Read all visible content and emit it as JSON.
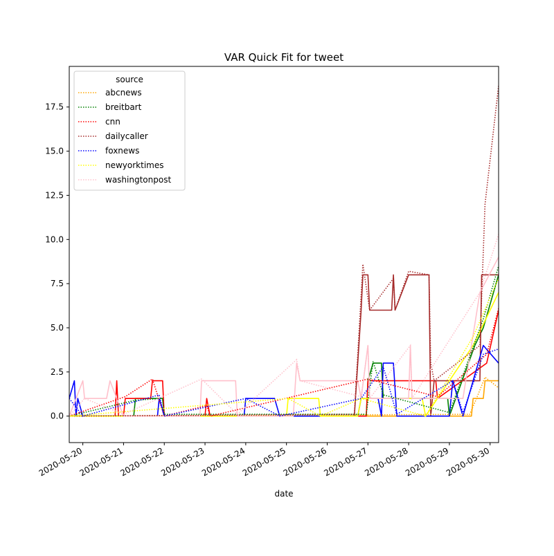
{
  "chart_data": {
    "type": "line",
    "title": "VAR Quick Fit for tweet",
    "xlabel": "date",
    "ylabel": "",
    "x_range": [
      "2020-05-19 16:00",
      "2020-05-30 05:00"
    ],
    "ylim": [
      -1.5,
      19.8
    ],
    "x_ticks": [
      "2020-05-20",
      "2020-05-21",
      "2020-05-22",
      "2020-05-23",
      "2020-05-24",
      "2020-05-25",
      "2020-05-26",
      "2020-05-27",
      "2020-05-28",
      "2020-05-29",
      "2020-05-30"
    ],
    "y_ticks": [
      0.0,
      2.5,
      5.0,
      7.5,
      10.0,
      12.5,
      15.0,
      17.5
    ],
    "y_tick_labels": [
      "0.0",
      "2.5",
      "5.0",
      "7.5",
      "10.0",
      "12.5",
      "15.0",
      "17.5"
    ],
    "grid": false,
    "legend": {
      "title": "source",
      "placement": "upper-left"
    },
    "series": [
      {
        "name": "abcnews",
        "color": "#ffa500",
        "actual": [
          [
            "2020-05-19 16:00",
            0
          ],
          [
            "2020-05-29 13:00",
            0
          ],
          [
            "2020-05-29 14:00",
            1
          ],
          [
            "2020-05-29 20:00",
            1
          ],
          [
            "2020-05-29 21:00",
            2
          ],
          [
            "2020-05-30 05:00",
            2
          ]
        ],
        "fitted": [
          [
            "2020-05-19 16:00",
            0
          ],
          [
            "2020-05-29 12:00",
            0.1
          ],
          [
            "2020-05-29 16:00",
            1
          ],
          [
            "2020-05-29 21:00",
            2.2
          ],
          [
            "2020-05-30 05:00",
            1.6
          ]
        ]
      },
      {
        "name": "breitbart",
        "color": "#008000",
        "actual": [
          [
            "2020-05-19 16:00",
            0
          ],
          [
            "2020-05-21 06:00",
            0
          ],
          [
            "2020-05-21 07:00",
            1
          ],
          [
            "2020-05-21 23:00",
            1
          ],
          [
            "2020-05-22 00:00",
            0
          ],
          [
            "2020-05-26 23:00",
            0
          ],
          [
            "2020-05-27 00:00",
            2
          ],
          [
            "2020-05-27 03:00",
            3
          ],
          [
            "2020-05-27 08:00",
            3
          ],
          [
            "2020-05-27 09:00",
            1
          ],
          [
            "2020-05-28 23:00",
            1
          ],
          [
            "2020-05-29 00:00",
            0
          ],
          [
            "2020-05-29 15:00",
            4
          ],
          [
            "2020-05-29 20:00",
            5
          ],
          [
            "2020-05-30 05:00",
            8
          ]
        ],
        "fitted": [
          [
            "2020-05-19 16:00",
            0
          ],
          [
            "2020-05-21 07:00",
            0.9
          ],
          [
            "2020-05-21 23:00",
            1
          ],
          [
            "2020-05-22 00:00",
            0.1
          ],
          [
            "2020-05-26 23:00",
            0.1
          ],
          [
            "2020-05-27 03:00",
            3.1
          ],
          [
            "2020-05-27 09:00",
            1.2
          ],
          [
            "2020-05-29 00:00",
            0.2
          ],
          [
            "2020-05-29 20:00",
            5.5
          ],
          [
            "2020-05-30 05:00",
            8.5
          ]
        ]
      },
      {
        "name": "cnn",
        "color": "#ff0000",
        "actual": [
          [
            "2020-05-19 16:00",
            0
          ],
          [
            "2020-05-20 19:00",
            0
          ],
          [
            "2020-05-20 20:00",
            2
          ],
          [
            "2020-05-20 21:00",
            0
          ],
          [
            "2020-05-21 00:00",
            0
          ],
          [
            "2020-05-21 01:00",
            1
          ],
          [
            "2020-05-21 16:00",
            1
          ],
          [
            "2020-05-21 17:00",
            2
          ],
          [
            "2020-05-21 23:00",
            2
          ],
          [
            "2020-05-22 00:00",
            0
          ],
          [
            "2020-05-23 00:00",
            0
          ],
          [
            "2020-05-23 01:00",
            1
          ],
          [
            "2020-05-23 03:00",
            0
          ],
          [
            "2020-05-26 23:00",
            0
          ],
          [
            "2020-05-27 00:00",
            2
          ],
          [
            "2020-05-28 16:00",
            2
          ],
          [
            "2020-05-28 17:00",
            1
          ],
          [
            "2020-05-29 22:00",
            3
          ],
          [
            "2020-05-30 05:00",
            6
          ]
        ],
        "fitted": [
          [
            "2020-05-19 16:00",
            0
          ],
          [
            "2020-05-21 01:00",
            1.1
          ],
          [
            "2020-05-21 17:00",
            2.1
          ],
          [
            "2020-05-22 00:00",
            0
          ],
          [
            "2020-05-23 01:00",
            0.6
          ],
          [
            "2020-05-23 03:00",
            0
          ],
          [
            "2020-05-27 00:00",
            2.1
          ],
          [
            "2020-05-28 17:00",
            1.1
          ],
          [
            "2020-05-29 22:00",
            3.5
          ],
          [
            "2020-05-30 05:00",
            6.1
          ]
        ]
      },
      {
        "name": "dailycaller",
        "color": "#a52a2a",
        "actual": [
          [
            "2020-05-19 16:00",
            0
          ],
          [
            "2020-05-26 16:00",
            0
          ],
          [
            "2020-05-26 20:00",
            6
          ],
          [
            "2020-05-26 21:00",
            8
          ],
          [
            "2020-05-27 00:00",
            8
          ],
          [
            "2020-05-27 01:00",
            6
          ],
          [
            "2020-05-27 14:00",
            6
          ],
          [
            "2020-05-27 15:00",
            8
          ],
          [
            "2020-05-27 16:00",
            6
          ],
          [
            "2020-05-28 00:00",
            8
          ],
          [
            "2020-05-28 12:00",
            8
          ],
          [
            "2020-05-28 13:00",
            0
          ],
          [
            "2020-05-28 15:00",
            2
          ],
          [
            "2020-05-29 18:00",
            2
          ],
          [
            "2020-05-29 19:00",
            8
          ],
          [
            "2020-05-30 05:00",
            8
          ]
        ],
        "fitted": [
          [
            "2020-05-19 16:00",
            0
          ],
          [
            "2020-05-26 16:00",
            0.1
          ],
          [
            "2020-05-26 21:00",
            8.6
          ],
          [
            "2020-05-27 01:00",
            6
          ],
          [
            "2020-05-27 15:00",
            7.8
          ],
          [
            "2020-05-27 16:00",
            6
          ],
          [
            "2020-05-28 00:00",
            8.2
          ],
          [
            "2020-05-28 12:00",
            8
          ],
          [
            "2020-05-28 13:00",
            3
          ],
          [
            "2020-05-28 15:00",
            2
          ],
          [
            "2020-05-29 18:00",
            4
          ],
          [
            "2020-05-29 21:00",
            12
          ],
          [
            "2020-05-30 05:00",
            18.7
          ]
        ]
      },
      {
        "name": "foxnews",
        "color": "#0000ff",
        "actual": [
          [
            "2020-05-19 16:00",
            1
          ],
          [
            "2020-05-19 19:00",
            2
          ],
          [
            "2020-05-19 20:00",
            0
          ],
          [
            "2020-05-19 21:00",
            1
          ],
          [
            "2020-05-20 00:00",
            0
          ],
          [
            "2020-05-21 20:00",
            0
          ],
          [
            "2020-05-21 21:00",
            1
          ],
          [
            "2020-05-22 00:00",
            0
          ],
          [
            "2020-05-23 23:00",
            0
          ],
          [
            "2020-05-24 00:00",
            1
          ],
          [
            "2020-05-24 17:00",
            1
          ],
          [
            "2020-05-24 20:00",
            0
          ],
          [
            "2020-05-26 18:00",
            0
          ],
          [
            "2020-05-26 20:00",
            1
          ],
          [
            "2020-05-27 06:00",
            1
          ],
          [
            "2020-05-27 08:00",
            0
          ],
          [
            "2020-05-27 09:00",
            3
          ],
          [
            "2020-05-27 15:00",
            3
          ],
          [
            "2020-05-27 17:00",
            0
          ],
          [
            "2020-05-29 00:00",
            0
          ],
          [
            "2020-05-29 02:00",
            2
          ],
          [
            "2020-05-29 08:00",
            0
          ],
          [
            "2020-05-29 14:00",
            2
          ],
          [
            "2020-05-29 20:00",
            4
          ],
          [
            "2020-05-30 05:00",
            3
          ]
        ],
        "fitted": [
          [
            "2020-05-19 16:00",
            1
          ],
          [
            "2020-05-20 00:00",
            0
          ],
          [
            "2020-05-21 21:00",
            1.2
          ],
          [
            "2020-05-22 00:00",
            0
          ],
          [
            "2020-05-24 00:00",
            1
          ],
          [
            "2020-05-24 20:00",
            0
          ],
          [
            "2020-05-26 20:00",
            1
          ],
          [
            "2020-05-27 09:00",
            2.8
          ],
          [
            "2020-05-27 17:00",
            0.1
          ],
          [
            "2020-05-29 02:00",
            2
          ],
          [
            "2020-05-29 08:00",
            0.2
          ],
          [
            "2020-05-29 20:00",
            3.5
          ],
          [
            "2020-05-30 05:00",
            3.8
          ]
        ]
      },
      {
        "name": "newyorktimes",
        "color": "#ffff00",
        "actual": [
          [
            "2020-05-19 16:00",
            0
          ],
          [
            "2020-05-25 00:00",
            0
          ],
          [
            "2020-05-25 01:00",
            1
          ],
          [
            "2020-05-25 19:00",
            1
          ],
          [
            "2020-05-25 20:00",
            0
          ],
          [
            "2020-05-26 18:00",
            0
          ],
          [
            "2020-05-26 20:00",
            1
          ],
          [
            "2020-05-28 08:00",
            1
          ],
          [
            "2020-05-28 10:00",
            0
          ],
          [
            "2020-05-29 14:00",
            4
          ],
          [
            "2020-05-30 05:00",
            7
          ]
        ],
        "fitted": [
          [
            "2020-05-19 16:00",
            0
          ],
          [
            "2020-05-25 01:00",
            1
          ],
          [
            "2020-05-25 20:00",
            0
          ],
          [
            "2020-05-26 20:00",
            1
          ],
          [
            "2020-05-28 10:00",
            0
          ],
          [
            "2020-05-29 14:00",
            4.5
          ],
          [
            "2020-05-30 05:00",
            7.8
          ]
        ]
      },
      {
        "name": "washingtonpost",
        "color": "#ffc0cb",
        "actual": [
          [
            "2020-05-19 16:00",
            0
          ],
          [
            "2020-05-20 00:00",
            2
          ],
          [
            "2020-05-20 01:00",
            1
          ],
          [
            "2020-05-20 14:00",
            1
          ],
          [
            "2020-05-20 16:00",
            2
          ],
          [
            "2020-05-20 20:00",
            1
          ],
          [
            "2020-05-21 00:00",
            0
          ],
          [
            "2020-05-22 21:00",
            0
          ],
          [
            "2020-05-22 22:00",
            2
          ],
          [
            "2020-05-23 18:00",
            2
          ],
          [
            "2020-05-23 19:00",
            0
          ],
          [
            "2020-05-25 04:00",
            0
          ],
          [
            "2020-05-25 06:00",
            3
          ],
          [
            "2020-05-25 08:00",
            2
          ],
          [
            "2020-05-26 18:00",
            2
          ],
          [
            "2020-05-26 20:00",
            1
          ],
          [
            "2020-05-27 00:00",
            4
          ],
          [
            "2020-05-27 01:00",
            1
          ],
          [
            "2020-05-28 00:00",
            1
          ],
          [
            "2020-05-28 01:00",
            4
          ],
          [
            "2020-05-28 02:00",
            1
          ],
          [
            "2020-05-29 08:00",
            1
          ],
          [
            "2020-05-29 18:00",
            7
          ],
          [
            "2020-05-30 05:00",
            9
          ]
        ],
        "fitted": [
          [
            "2020-05-19 16:00",
            0
          ],
          [
            "2020-05-20 01:00",
            1
          ],
          [
            "2020-05-21 00:00",
            0.1
          ],
          [
            "2020-05-22 22:00",
            2.1
          ],
          [
            "2020-05-23 19:00",
            0.1
          ],
          [
            "2020-05-25 06:00",
            3.2
          ],
          [
            "2020-05-25 08:00",
            2
          ],
          [
            "2020-05-26 20:00",
            1.1
          ],
          [
            "2020-05-27 00:00",
            4
          ],
          [
            "2020-05-27 01:00",
            1
          ],
          [
            "2020-05-28 01:00",
            4
          ],
          [
            "2020-05-28 02:00",
            1
          ],
          [
            "2020-05-29 18:00",
            7
          ],
          [
            "2020-05-30 05:00",
            10.3
          ]
        ]
      }
    ]
  }
}
